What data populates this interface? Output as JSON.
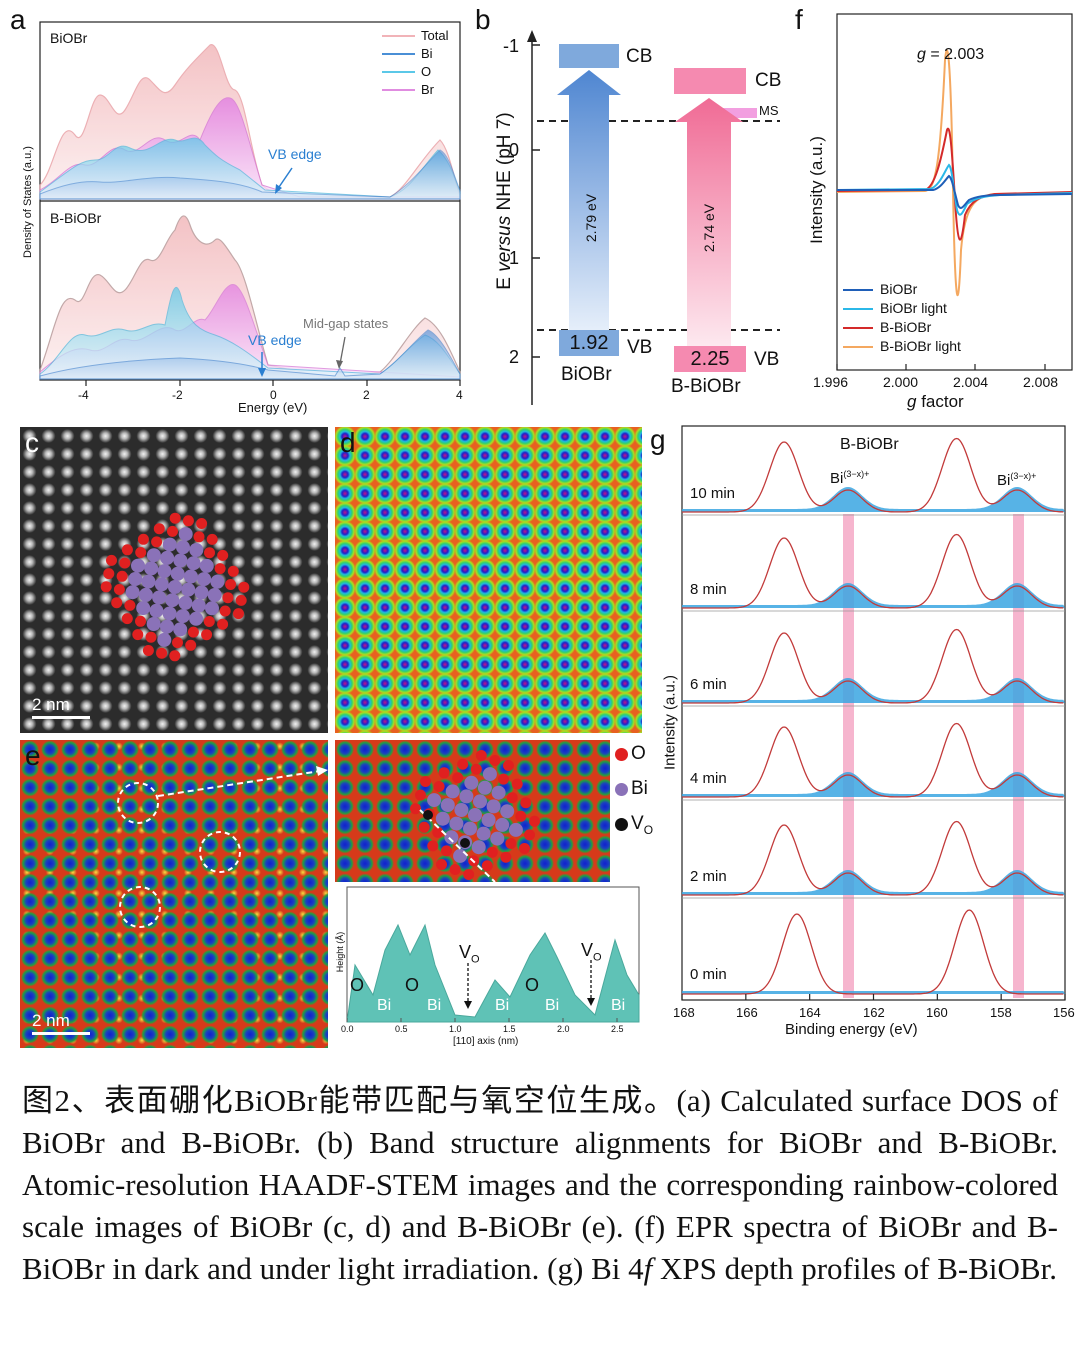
{
  "panel_labels": {
    "a": "a",
    "b": "b",
    "c": "c",
    "d": "d",
    "e": "e",
    "f": "f",
    "g": "g"
  },
  "panel_a": {
    "top_title": "BiOBr",
    "bottom_title": "B-BiOBr",
    "legend": [
      "Total",
      "Bi",
      "O",
      "Br"
    ],
    "ylabel": "Density of States (a.u.)",
    "xlabel": "Energy (eV)",
    "xticks": [
      "-4",
      "-2",
      "0",
      "2",
      "4"
    ],
    "vb_edge": "VB edge",
    "midgap": "Mid-gap states",
    "colors": {
      "total": "#f1b3b8",
      "bi": "#4a8fd6",
      "o": "#5bc8e8",
      "br": "#e08ce0"
    }
  },
  "panel_b": {
    "ylabel_prefix": "E ",
    "ylabel_italic": "versus",
    "ylabel_suffix": " NHE (pH 7)",
    "yticks": [
      "-1",
      "0",
      "1",
      "2"
    ],
    "cb": "CB",
    "vb": "VB",
    "ms": "MS",
    "biobr": {
      "name": "BiOBr",
      "vb_value": "1.92",
      "gap": "2.79 eV",
      "color": "#7fa9dc"
    },
    "bbiobr": {
      "name": "B-BiOBr",
      "vb_value": "2.25",
      "gap": "2.74 eV",
      "color": "#f58ab0"
    }
  },
  "panel_c": {
    "scale": "2 nm"
  },
  "panel_e": {
    "scale": "2 nm",
    "legend": [
      {
        "label": "O",
        "color": "#e02020"
      },
      {
        "label": "Bi",
        "color": "#8a72b8"
      },
      {
        "label": "V",
        "sub": "O",
        "color": "#111111"
      }
    ],
    "profile": {
      "ylabel": "Height (Å)",
      "xlabel": "[110]  axis (nm)",
      "xticks": [
        "0.0",
        "0.5",
        "1.0",
        "1.5",
        "2.0",
        "2.5"
      ],
      "labels": [
        "O",
        "Bi",
        "O",
        "Bi",
        "Bi",
        "O",
        "Bi",
        "Bi"
      ],
      "vo": "V",
      "vo_sub": "O"
    }
  },
  "panel_f": {
    "g_prefix": "g",
    "g_value": " = 2.003",
    "ylabel": "Intensity (a.u.)",
    "xlabel_italic": "g",
    "xlabel_rest": " factor",
    "xticks": [
      "1.996",
      "2.000",
      "2.004",
      "2.008"
    ],
    "legend": [
      {
        "label": "BiOBr",
        "color": "#1f5fb8"
      },
      {
        "label": "BiOBr light",
        "color": "#2bb8e8"
      },
      {
        "label": "B-BiOBr",
        "color": "#d42a2a"
      },
      {
        "label": "B-BiOBr light",
        "color": "#f4a860"
      }
    ]
  },
  "panel_g": {
    "title": "B-BiOBr",
    "peak_label": "Bi",
    "peak_sup": "(3−x)+",
    "ylabel": "Intensity (a.u.)",
    "xlabel": "Binding energy (eV)",
    "xticks": [
      "168",
      "166",
      "164",
      "162",
      "160",
      "158",
      "156"
    ],
    "times": [
      "10 min",
      "8 min",
      "6 min",
      "4 min",
      "2 min",
      "0 min"
    ]
  },
  "caption": {
    "zh": "图2、表面硼化BiOBr能带匹配与氧空位生成。",
    "p1": "(a) Calculated surface DOS of BiOBr and B-BiOBr. (b) Band structure alignments for BiOBr and B-BiOBr. Atomic-resolution HAADF-STEM images and the corresponding rainbow-colored scale images of BiOBr (c, d) and B-BiOBr (e). (f) EPR spectra of BiOBr and B-BiOBr in dark and under light irradiation. (g) Bi 4",
    "p1_italic": "f",
    "p2": " XPS depth profiles of B-BiOBr."
  }
}
